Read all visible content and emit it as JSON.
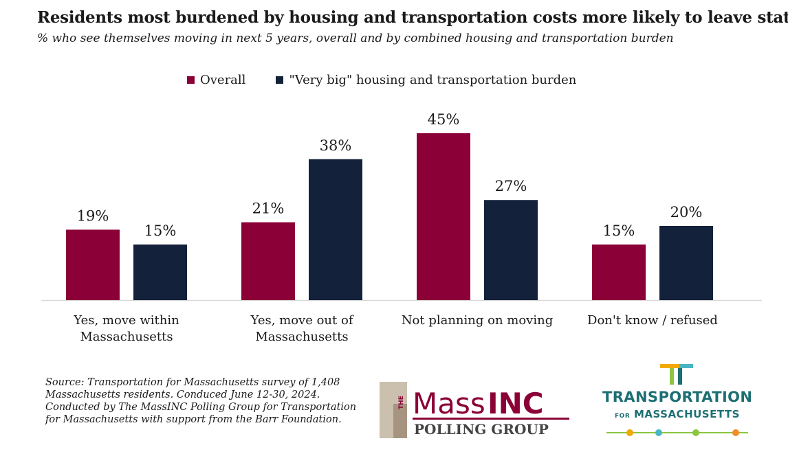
{
  "header": {
    "title": "Residents most burdened by housing and transportation costs more likely to leave state",
    "subtitle": "% who see themselves moving in next 5 years, overall and by combined housing and transportation burden"
  },
  "legend": {
    "items": [
      {
        "label": "Overall",
        "color": "#8b0036"
      },
      {
        "label": "\"Very big\" housing and transportation burden",
        "color": "#13223a"
      }
    ]
  },
  "chart_data": {
    "type": "bar",
    "categories": [
      "Yes, move within Massachusetts",
      "Yes, move out of Massachusetts",
      "Not planning on moving",
      "Don't know / refused"
    ],
    "category_lines": [
      [
        "Yes, move within",
        "Massachusetts"
      ],
      [
        "Yes, move out of",
        "Massachusetts"
      ],
      [
        "Not planning on moving"
      ],
      [
        "Don't know / refused"
      ]
    ],
    "series": [
      {
        "name": "Overall",
        "values": [
          19,
          21,
          45,
          15
        ],
        "labels": [
          "19%",
          "21%",
          "45%",
          "15%"
        ],
        "color": "#8b0036"
      },
      {
        "name": "\"Very big\" housing and transportation burden",
        "values": [
          15,
          38,
          27,
          20
        ],
        "labels": [
          "15%",
          "38%",
          "27%",
          "20%"
        ],
        "color": "#13223a"
      }
    ],
    "unit": "%",
    "grid": false,
    "legend_position": "top"
  },
  "footer": {
    "source_lines": [
      "Source: Transportation for Massachusetts survey of 1,408",
      "Massachusetts residents. Conduced June 12-30, 2024.",
      "Conducted by The MassINC Polling Group for Transportation",
      "for Massachusetts with support from the Barr Foundation."
    ]
  },
  "logos": {
    "massinc": {
      "the": "THE",
      "mass": "Mass",
      "inc": "INC",
      "polling": "POLLING GROUP"
    },
    "t4ma": {
      "line1": "TRANSPORTATION",
      "for": "FOR",
      "line2": "MASSACHUSETTS"
    }
  }
}
